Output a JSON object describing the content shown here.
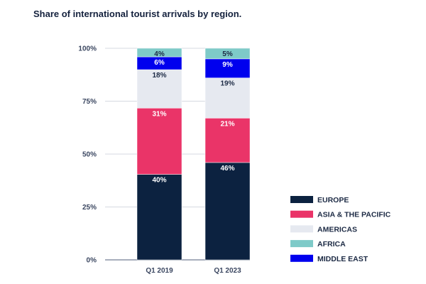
{
  "chart_data": {
    "type": "bar",
    "stacked": true,
    "title": "Share of international tourist arrivals by region.",
    "xlabel": "",
    "ylabel": "",
    "ylim": [
      0,
      100
    ],
    "yticks": [
      "0%",
      "25%",
      "50%",
      "75%",
      "100%"
    ],
    "ytick_values": [
      0,
      25,
      50,
      75,
      100
    ],
    "categories": [
      "Q1 2019",
      "Q1 2023"
    ],
    "grid": true,
    "legend_position": "right",
    "series": [
      {
        "name": "EUROPE",
        "values": [
          40,
          46
        ],
        "labels": [
          "40%",
          "46%"
        ],
        "color": "#0c2240",
        "label_color": "#ffffff"
      },
      {
        "name": "ASIA & THE PACIFIC",
        "values": [
          31,
          21
        ],
        "labels": [
          "31%",
          "21%"
        ],
        "color": "#ea3468",
        "label_color": "#ffffff"
      },
      {
        "name": "AMERICAS",
        "values": [
          18,
          19
        ],
        "labels": [
          "18%",
          "19%"
        ],
        "color": "#e6e9f0",
        "label_color": "#1c2a44"
      },
      {
        "name": "MIDDLE EAST",
        "values": [
          6,
          9
        ],
        "labels": [
          "6%",
          "9%"
        ],
        "color": "#0000ee",
        "label_color": "#ffffff"
      },
      {
        "name": "AFRICA",
        "values": [
          4,
          5
        ],
        "labels": [
          "4%",
          "5%"
        ],
        "color": "#7ecac8",
        "label_color": "#1c2a44"
      }
    ],
    "legend_order": [
      "EUROPE",
      "ASIA & THE PACIFIC",
      "AMERICAS",
      "AFRICA",
      "MIDDLE EAST"
    ]
  }
}
